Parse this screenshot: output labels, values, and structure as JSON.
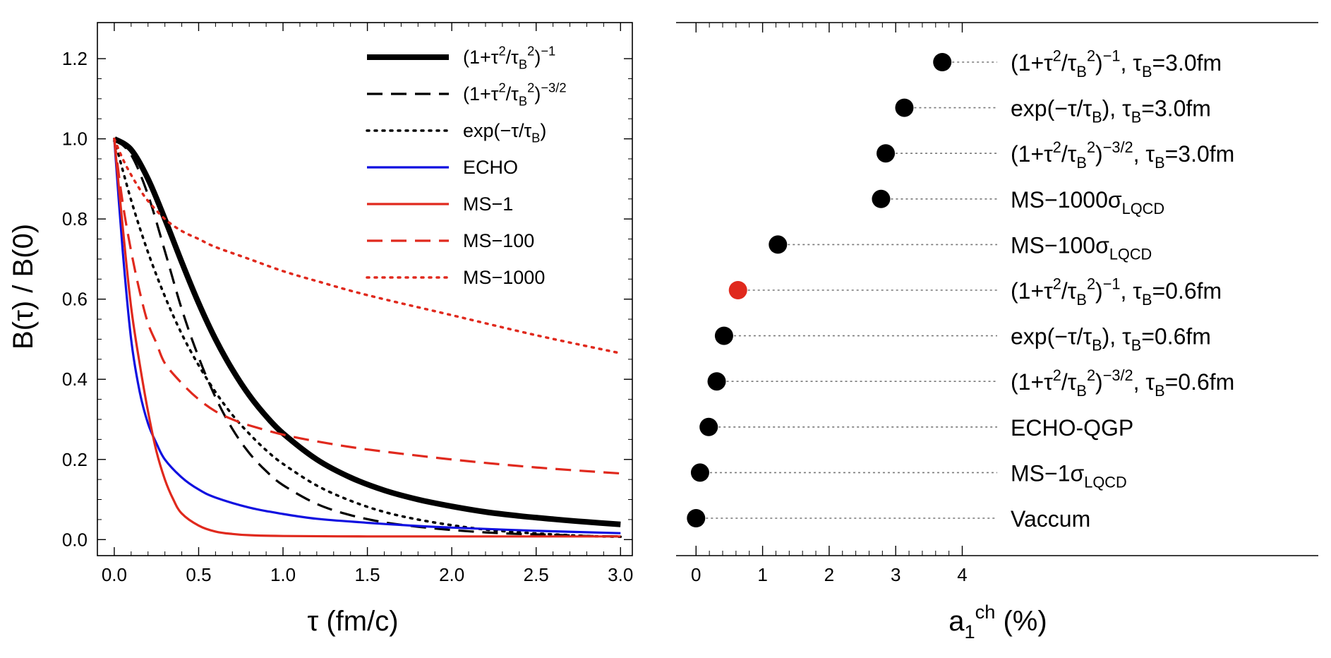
{
  "chart_data": [
    {
      "type": "line",
      "xlabel": "τ (fm/c)",
      "ylabel": "B(τ) / B(0)",
      "xlim": [
        -0.1,
        3.07
      ],
      "ylim": [
        -0.04,
        1.29
      ],
      "xticks": [
        "0.0",
        "0.5",
        "1.0",
        "1.5",
        "2.0",
        "2.5",
        "3.0"
      ],
      "yticks": [
        "0.0",
        "0.2",
        "0.4",
        "0.6",
        "0.8",
        "1.0",
        "1.2"
      ],
      "grid": false,
      "legend_position": "top-right",
      "legend": [
        "(1+τ²/τ_B²)⁻¹",
        "(1+τ²/τ_B²)^(−3/2)",
        "exp(−τ/τ_B)",
        "ECHO",
        "MS−1",
        "MS−100",
        "MS−1000"
      ],
      "series": [
        {
          "name": "(1+τ²/τ_B²)⁻¹",
          "color": "#000000",
          "style": "solid-thick",
          "x": [
            0,
            0.1,
            0.2,
            0.3,
            0.4,
            0.5,
            0.6,
            0.7,
            0.8,
            0.9,
            1.0,
            1.2,
            1.4,
            1.6,
            1.8,
            2.0,
            2.2,
            2.4,
            2.6,
            2.8,
            3.0
          ],
          "y": [
            1.0,
            0.973,
            0.9,
            0.8,
            0.692,
            0.59,
            0.5,
            0.424,
            0.36,
            0.308,
            0.265,
            0.2,
            0.155,
            0.123,
            0.1,
            0.083,
            0.069,
            0.059,
            0.051,
            0.044,
            0.038
          ]
        },
        {
          "name": "(1+τ²/τ_B²)^(−3/2)",
          "color": "#000000",
          "style": "dashed",
          "x": [
            0,
            0.1,
            0.2,
            0.3,
            0.4,
            0.5,
            0.6,
            0.7,
            0.8,
            0.9,
            1.0,
            1.2,
            1.4,
            1.6,
            1.8,
            2.0,
            2.2,
            2.4,
            2.6,
            2.8,
            3.0
          ],
          "y": [
            1.0,
            0.96,
            0.86,
            0.72,
            0.575,
            0.455,
            0.355,
            0.276,
            0.216,
            0.171,
            0.136,
            0.089,
            0.061,
            0.043,
            0.032,
            0.024,
            0.018,
            0.014,
            0.012,
            0.009,
            0.008
          ]
        },
        {
          "name": "exp(−τ/τ_B)",
          "color": "#000000",
          "style": "dotted",
          "x": [
            0,
            0.1,
            0.2,
            0.3,
            0.4,
            0.5,
            0.6,
            0.7,
            0.8,
            0.9,
            1.0,
            1.2,
            1.4,
            1.6,
            1.8,
            2.0,
            2.2,
            2.4,
            2.6,
            2.8,
            3.0
          ],
          "y": [
            1.0,
            0.847,
            0.717,
            0.607,
            0.513,
            0.435,
            0.368,
            0.311,
            0.264,
            0.223,
            0.189,
            0.135,
            0.097,
            0.069,
            0.05,
            0.036,
            0.025,
            0.018,
            0.013,
            0.009,
            0.007
          ]
        },
        {
          "name": "ECHO",
          "color": "#1010e0",
          "style": "solid",
          "x": [
            0,
            0.05,
            0.1,
            0.15,
            0.2,
            0.25,
            0.3,
            0.4,
            0.5,
            0.6,
            0.8,
            1.0,
            1.2,
            1.5,
            1.8,
            2.0,
            2.5,
            3.0
          ],
          "y": [
            1.0,
            0.72,
            0.5,
            0.37,
            0.29,
            0.24,
            0.2,
            0.155,
            0.125,
            0.105,
            0.08,
            0.064,
            0.052,
            0.042,
            0.034,
            0.03,
            0.022,
            0.016
          ]
        },
        {
          "name": "MS−1",
          "color": "#e0291d",
          "style": "solid",
          "x": [
            0,
            0.05,
            0.1,
            0.15,
            0.2,
            0.25,
            0.3,
            0.35,
            0.4,
            0.5,
            0.6,
            0.7,
            0.8,
            1.0,
            1.5,
            2.0,
            2.5,
            3.0
          ],
          "y": [
            1.0,
            0.78,
            0.58,
            0.44,
            0.32,
            0.22,
            0.15,
            0.1,
            0.065,
            0.035,
            0.02,
            0.014,
            0.011,
            0.009,
            0.008,
            0.008,
            0.008,
            0.008
          ]
        },
        {
          "name": "MS−100",
          "color": "#e0291d",
          "style": "dashed",
          "x": [
            0,
            0.05,
            0.1,
            0.15,
            0.2,
            0.25,
            0.3,
            0.4,
            0.5,
            0.6,
            0.7,
            0.8,
            1.0,
            1.2,
            1.5,
            2.0,
            2.5,
            3.0
          ],
          "y": [
            1.0,
            0.84,
            0.72,
            0.62,
            0.54,
            0.49,
            0.44,
            0.39,
            0.35,
            0.32,
            0.3,
            0.285,
            0.262,
            0.245,
            0.225,
            0.2,
            0.18,
            0.165
          ]
        },
        {
          "name": "MS−1000",
          "color": "#e0291d",
          "style": "dotted",
          "x": [
            0,
            0.05,
            0.1,
            0.15,
            0.2,
            0.3,
            0.4,
            0.5,
            0.6,
            0.8,
            1.0,
            1.2,
            1.5,
            2.0,
            2.5,
            3.0
          ],
          "y": [
            1.0,
            0.95,
            0.91,
            0.875,
            0.845,
            0.8,
            0.77,
            0.75,
            0.73,
            0.7,
            0.67,
            0.645,
            0.61,
            0.56,
            0.51,
            0.465
          ]
        }
      ]
    },
    {
      "type": "scatter",
      "xlabel": "a₁ᶜʰ (%)",
      "xlim": [
        -0.3,
        9.35
      ],
      "xticks": [
        "0",
        "1",
        "2",
        "3",
        "4"
      ],
      "grid": false,
      "points": [
        {
          "label": "(1+τ²/τ_B²)⁻¹, τ_B=3.0fm",
          "value": 3.7,
          "color": "#000000"
        },
        {
          "label": "exp(−τ/τ_B), τ_B=3.0fm",
          "value": 3.13,
          "color": "#000000"
        },
        {
          "label": "(1+τ²/τ_B²)^(−3/2), τ_B=3.0fm",
          "value": 2.85,
          "color": "#000000"
        },
        {
          "label": "MS−1000σ_LQCD",
          "value": 2.78,
          "color": "#000000"
        },
        {
          "label": "MS−100σ_LQCD",
          "value": 1.23,
          "color": "#000000"
        },
        {
          "label": "(1+τ²/τ_B²)⁻¹, τ_B=0.6fm",
          "value": 0.63,
          "color": "#e0291d"
        },
        {
          "label": "exp(−τ/τ_B), τ_B=0.6fm",
          "value": 0.42,
          "color": "#000000"
        },
        {
          "label": "(1+τ²/τ_B²)^(−3/2), τ_B=0.6fm",
          "value": 0.31,
          "color": "#000000"
        },
        {
          "label": "ECHO-QGP",
          "value": 0.19,
          "color": "#000000"
        },
        {
          "label": "MS−1σ_LQCD",
          "value": 0.06,
          "color": "#000000"
        },
        {
          "label": "Vaccum",
          "value": 0.0,
          "color": "#000000"
        }
      ]
    }
  ]
}
